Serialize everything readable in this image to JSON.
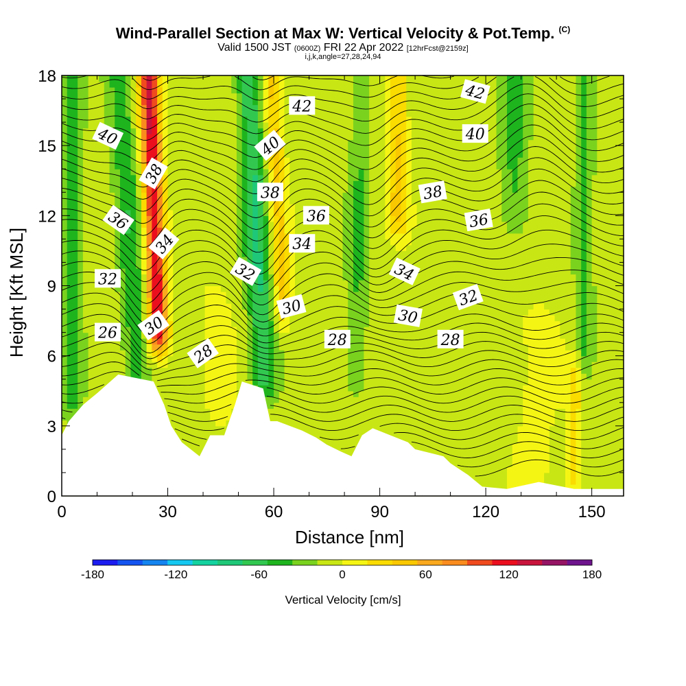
{
  "title": {
    "main": "Wind-Parallel Section at Max W: Vertical Velocity & Pot.Temp.",
    "copyright": "(C)",
    "valid_prefix": "Valid 1500 JST",
    "valid_utc": "(0600Z)",
    "valid_date": "FRI 22 Apr 2022",
    "forecast": "[12hrFcst@2159z]",
    "indices": "i,j,k,angle=27,28,24,94"
  },
  "chart_data": {
    "type": "heatmap",
    "xlabel": "Distance [nm]",
    "ylabel": "Height [Kft MSL]",
    "xlim": [
      0,
      159
    ],
    "ylim": [
      0,
      18
    ],
    "x_ticks": [
      "0",
      "30",
      "60",
      "90",
      "120",
      "150"
    ],
    "x_tick_values": [
      0,
      30,
      60,
      90,
      120,
      150
    ],
    "y_ticks": [
      "0",
      "3",
      "6",
      "9",
      "12",
      "15",
      "18"
    ],
    "y_tick_values": [
      0,
      3,
      6,
      9,
      12,
      15,
      18
    ],
    "colorbar": {
      "title": "Vertical Velocity [cm/s]",
      "labels": [
        "-180",
        "-120",
        "-60",
        "0",
        "60",
        "120",
        "180"
      ],
      "label_values": [
        -180,
        -120,
        -60,
        0,
        60,
        120,
        180
      ],
      "range": [
        -180,
        180
      ],
      "step": 20,
      "colors": [
        "#1c1cf0",
        "#1453f0",
        "#1484f0",
        "#14c8f0",
        "#14d2a0",
        "#1ec878",
        "#32c850",
        "#1eb41e",
        "#7ad21e",
        "#c8e614",
        "#f5f514",
        "#fadc00",
        "#fac800",
        "#faaa1e",
        "#fa8c1e",
        "#f04b1e",
        "#eb0f1e",
        "#c8143c",
        "#961464",
        "#6e148c"
      ]
    },
    "terrain_kft": [
      [
        0,
        2.6
      ],
      [
        2,
        3.2
      ],
      [
        6,
        3.9
      ],
      [
        10,
        4.4
      ],
      [
        13,
        4.8
      ],
      [
        16,
        5.2
      ],
      [
        26,
        4.9
      ],
      [
        29,
        3.9
      ],
      [
        31,
        3.0
      ],
      [
        34,
        2.3
      ],
      [
        39,
        1.7
      ],
      [
        42,
        2.6
      ],
      [
        46,
        2.6
      ],
      [
        49,
        3.9
      ],
      [
        51,
        4.9
      ],
      [
        57,
        4.6
      ],
      [
        59,
        3.2
      ],
      [
        61,
        3.2
      ],
      [
        68,
        2.8
      ],
      [
        72,
        2.5
      ],
      [
        75,
        2.2
      ],
      [
        79,
        1.9
      ],
      [
        82,
        1.7
      ],
      [
        85,
        2.6
      ],
      [
        88,
        2.9
      ],
      [
        93,
        2.6
      ],
      [
        98,
        2.3
      ],
      [
        100,
        2.0
      ],
      [
        108,
        1.7
      ],
      [
        110,
        1.4
      ],
      [
        112,
        1.2
      ],
      [
        115,
        0.9
      ],
      [
        119,
        0.4
      ],
      [
        126,
        0.3
      ],
      [
        135,
        0.6
      ],
      [
        145,
        0.3
      ],
      [
        150,
        0.3
      ],
      [
        155,
        0.3
      ],
      [
        159,
        0.3
      ]
    ],
    "w_features": [
      {
        "x": 26,
        "w": 150,
        "width": 2.8,
        "zmin": 7,
        "zmax": 18,
        "tilt": -0.25
      },
      {
        "x": 19,
        "w": -45,
        "width": 3.5,
        "zmin": 5,
        "zmax": 18,
        "tilt": -0.4
      },
      {
        "x": 3,
        "w": -40,
        "width": 2.5,
        "zmin": 4,
        "zmax": 18,
        "tilt": 0
      },
      {
        "x": 55,
        "w": -70,
        "width": 3.5,
        "zmin": 5,
        "zmax": 18,
        "tilt": -0.35
      },
      {
        "x": 61,
        "w": 55,
        "width": 2.5,
        "zmin": 8,
        "zmax": 18,
        "tilt": -0.3
      },
      {
        "x": 44,
        "w": 30,
        "width": 4,
        "zmin": 4,
        "zmax": 8,
        "tilt": -0.2
      },
      {
        "x": 95,
        "w": 55,
        "width": 3.0,
        "zmin": 12,
        "zmax": 18,
        "tilt": 0
      },
      {
        "x": 128,
        "w": -35,
        "width": 4,
        "zmin": 12,
        "zmax": 18,
        "tilt": 0
      },
      {
        "x": 84,
        "w": -30,
        "width": 3,
        "zmin": 5,
        "zmax": 18,
        "tilt": 0.1
      },
      {
        "x": 148,
        "w": -35,
        "width": 2.5,
        "zmin": 6,
        "zmax": 18,
        "tilt": 0
      },
      {
        "x": 145,
        "w": 40,
        "width": 2,
        "zmin": 0.5,
        "zmax": 5,
        "tilt": 0
      },
      {
        "x": 134,
        "w": 18,
        "width": 6,
        "zmin": 1,
        "zmax": 7.5,
        "tilt": 0
      }
    ],
    "theta_label_values": [
      26,
      28,
      30,
      32,
      34,
      36,
      38,
      40,
      42
    ],
    "theta_labels": [
      {
        "text": "26",
        "x": 13,
        "z": 7.0,
        "rot": 0
      },
      {
        "text": "28",
        "x": 40,
        "z": 6.1,
        "rot": -35
      },
      {
        "text": "28",
        "x": 78,
        "z": 6.7,
        "rot": 0
      },
      {
        "text": "28",
        "x": 110,
        "z": 6.7,
        "rot": 0
      },
      {
        "text": "30",
        "x": 26,
        "z": 7.3,
        "rot": -35
      },
      {
        "text": "30",
        "x": 65,
        "z": 8.1,
        "rot": -15
      },
      {
        "text": "30",
        "x": 98,
        "z": 7.7,
        "rot": 10
      },
      {
        "text": "32",
        "x": 13,
        "z": 9.3,
        "rot": 0
      },
      {
        "text": "32",
        "x": 52,
        "z": 9.6,
        "rot": 30
      },
      {
        "text": "32",
        "x": 115,
        "z": 8.5,
        "rot": -20
      },
      {
        "text": "34",
        "x": 29,
        "z": 10.8,
        "rot": -50
      },
      {
        "text": "34",
        "x": 68,
        "z": 10.8,
        "rot": 0
      },
      {
        "text": "34",
        "x": 97,
        "z": 9.6,
        "rot": 25
      },
      {
        "text": "36",
        "x": 16,
        "z": 11.8,
        "rot": 35
      },
      {
        "text": "36",
        "x": 72,
        "z": 12.0,
        "rot": 0
      },
      {
        "text": "36",
        "x": 118,
        "z": 11.8,
        "rot": -10
      },
      {
        "text": "38",
        "x": 26,
        "z": 13.8,
        "rot": -60
      },
      {
        "text": "38",
        "x": 59,
        "z": 13.0,
        "rot": 0
      },
      {
        "text": "38",
        "x": 105,
        "z": 13.0,
        "rot": -10
      },
      {
        "text": "40",
        "x": 13,
        "z": 15.4,
        "rot": 25
      },
      {
        "text": "40",
        "x": 59,
        "z": 15.0,
        "rot": -40
      },
      {
        "text": "40",
        "x": 117,
        "z": 15.5,
        "rot": 0
      },
      {
        "text": "42",
        "x": 68,
        "z": 16.7,
        "rot": 0
      },
      {
        "text": "42",
        "x": 117,
        "z": 17.3,
        "rot": 15
      }
    ]
  }
}
